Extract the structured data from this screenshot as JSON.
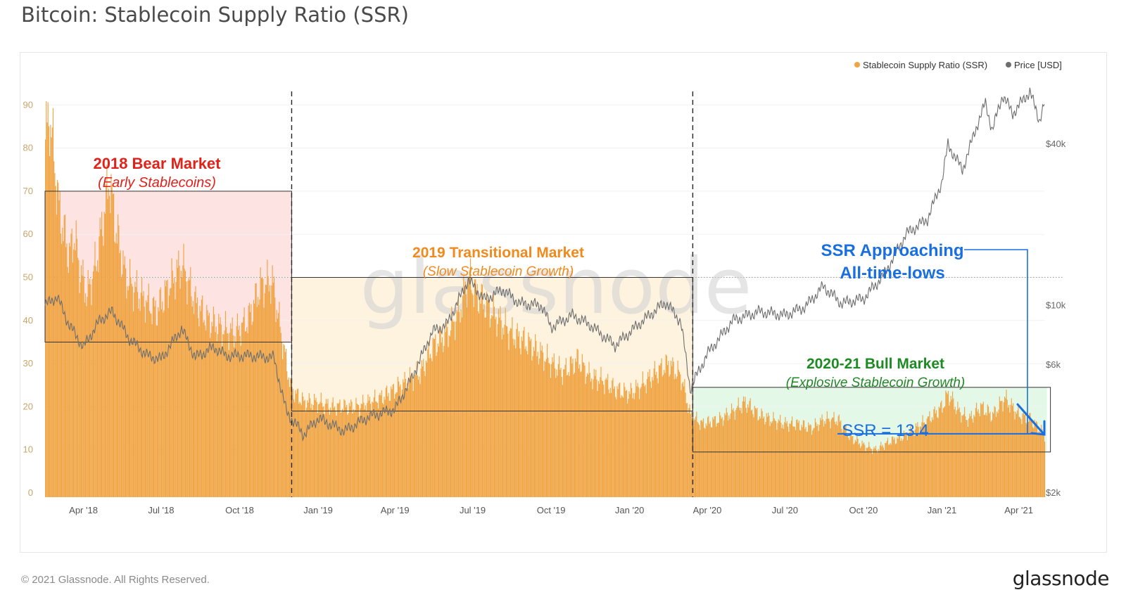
{
  "page": {
    "title": "Bitcoin: Stablecoin Supply Ratio (SSR)",
    "copyright": "© 2021 Glassnode. All Rights Reserved.",
    "logo": "glassnode",
    "watermark": "glassnode"
  },
  "colors": {
    "ssr": "#f0a443",
    "price": "#6e6e6e",
    "bear_box": "#fde3e1",
    "transition_box": "#fef3df",
    "bull_box": "#e4f8e8",
    "bear_text": "#e0231a",
    "transition_text": "#f08a1c",
    "bull_text": "#1e8a24",
    "ssr_text": "#1a6fe0"
  },
  "chart_data": {
    "type": "bar",
    "title": "Bitcoin: Stablecoin Supply Ratio (SSR)",
    "legend": [
      {
        "name": "Stablecoin Supply Ratio (SSR)",
        "color": "#f0a443"
      },
      {
        "name": "Price [USD]",
        "color": "#6e6e6e"
      }
    ],
    "legend_position": "top-right",
    "x_ticks": [
      "Apr '18",
      "Jul '18",
      "Oct '18",
      "Jan '19",
      "Apr '19",
      "Jul '19",
      "Oct '19",
      "Jan '20",
      "Apr '20",
      "Jul '20",
      "Oct '20",
      "Jan '21",
      "Apr '21"
    ],
    "x_range": [
      "2018-02-15",
      "2021-05-01"
    ],
    "y_left": {
      "ticks": [
        0,
        10,
        20,
        30,
        40,
        50,
        60,
        70,
        80,
        90
      ],
      "lim": [
        0,
        92
      ]
    },
    "y_right": {
      "ticks": [
        "$2k",
        "$6k",
        "$10k",
        "$40k"
      ],
      "scale": "log",
      "values": [
        2000,
        6000,
        10000,
        40000
      ]
    },
    "grid": true,
    "series": [
      {
        "name": "Stablecoin Supply Ratio (SSR)",
        "kind": "bar",
        "points": [
          [
            "2018-02-15",
            82
          ],
          [
            "2018-02-20",
            88
          ],
          [
            "2018-02-26",
            76
          ],
          [
            "2018-03-03",
            66
          ],
          [
            "2018-03-09",
            60
          ],
          [
            "2018-03-15",
            55
          ],
          [
            "2018-03-21",
            60
          ],
          [
            "2018-03-27",
            52
          ],
          [
            "2018-04-05",
            46
          ],
          [
            "2018-04-15",
            53
          ],
          [
            "2018-04-25",
            65
          ],
          [
            "2018-05-01",
            73
          ],
          [
            "2018-05-08",
            62
          ],
          [
            "2018-05-20",
            50
          ],
          [
            "2018-06-05",
            46
          ],
          [
            "2018-06-25",
            42
          ],
          [
            "2018-07-10",
            48
          ],
          [
            "2018-07-25",
            53
          ],
          [
            "2018-08-10",
            44
          ],
          [
            "2018-08-25",
            40
          ],
          [
            "2018-09-10",
            38
          ],
          [
            "2018-09-25",
            37
          ],
          [
            "2018-10-10",
            40
          ],
          [
            "2018-10-25",
            48
          ],
          [
            "2018-11-08",
            49
          ],
          [
            "2018-11-20",
            35
          ],
          [
            "2018-11-30",
            24
          ],
          [
            "2018-12-15",
            21
          ],
          [
            "2019-01-01",
            21
          ],
          [
            "2019-01-15",
            20
          ],
          [
            "2019-02-01",
            20
          ],
          [
            "2019-02-15",
            20
          ],
          [
            "2019-03-01",
            21
          ],
          [
            "2019-03-15",
            22
          ],
          [
            "2019-04-01",
            24
          ],
          [
            "2019-04-15",
            26
          ],
          [
            "2019-05-01",
            28
          ],
          [
            "2019-05-15",
            34
          ],
          [
            "2019-06-01",
            37
          ],
          [
            "2019-06-15",
            42
          ],
          [
            "2019-06-26",
            50
          ],
          [
            "2019-07-05",
            46
          ],
          [
            "2019-07-15",
            44
          ],
          [
            "2019-08-01",
            40
          ],
          [
            "2019-08-15",
            37
          ],
          [
            "2019-09-01",
            35
          ],
          [
            "2019-09-15",
            33
          ],
          [
            "2019-10-01",
            30
          ],
          [
            "2019-10-15",
            28
          ],
          [
            "2019-11-01",
            31
          ],
          [
            "2019-11-15",
            27
          ],
          [
            "2019-12-01",
            26
          ],
          [
            "2019-12-15",
            24
          ],
          [
            "2020-01-01",
            23
          ],
          [
            "2020-01-15",
            25
          ],
          [
            "2020-02-01",
            28
          ],
          [
            "2020-02-15",
            30
          ],
          [
            "2020-03-01",
            27
          ],
          [
            "2020-03-12",
            18
          ],
          [
            "2020-03-25",
            16
          ],
          [
            "2020-04-15",
            17
          ],
          [
            "2020-05-01",
            19
          ],
          [
            "2020-05-15",
            21
          ],
          [
            "2020-06-01",
            18
          ],
          [
            "2020-06-15",
            17
          ],
          [
            "2020-07-01",
            16
          ],
          [
            "2020-07-15",
            16
          ],
          [
            "2020-08-01",
            15
          ],
          [
            "2020-08-15",
            17
          ],
          [
            "2020-09-01",
            17
          ],
          [
            "2020-09-15",
            13
          ],
          [
            "2020-10-01",
            11
          ],
          [
            "2020-10-15",
            10
          ],
          [
            "2020-11-01",
            12
          ],
          [
            "2020-11-15",
            13
          ],
          [
            "2020-12-01",
            15
          ],
          [
            "2020-12-15",
            17
          ],
          [
            "2021-01-01",
            20
          ],
          [
            "2021-01-08",
            23
          ],
          [
            "2021-01-20",
            19
          ],
          [
            "2021-02-01",
            17
          ],
          [
            "2021-02-15",
            20
          ],
          [
            "2021-03-01",
            18
          ],
          [
            "2021-03-15",
            22
          ],
          [
            "2021-04-01",
            18
          ],
          [
            "2021-04-15",
            17
          ],
          [
            "2021-05-01",
            13.4
          ]
        ]
      },
      {
        "name": "Price [USD]",
        "kind": "line",
        "points": [
          [
            "2018-02-15",
            10000
          ],
          [
            "2018-03-01",
            10800
          ],
          [
            "2018-03-15",
            8500
          ],
          [
            "2018-04-01",
            7000
          ],
          [
            "2018-04-20",
            8800
          ],
          [
            "2018-05-05",
            9500
          ],
          [
            "2018-05-25",
            7500
          ],
          [
            "2018-06-15",
            6500
          ],
          [
            "2018-07-01",
            6300
          ],
          [
            "2018-07-25",
            8200
          ],
          [
            "2018-08-10",
            6400
          ],
          [
            "2018-09-01",
            7000
          ],
          [
            "2018-09-15",
            6500
          ],
          [
            "2018-10-10",
            6500
          ],
          [
            "2018-11-10",
            6400
          ],
          [
            "2018-11-25",
            4000
          ],
          [
            "2018-12-15",
            3300
          ],
          [
            "2019-01-01",
            3800
          ],
          [
            "2019-02-01",
            3400
          ],
          [
            "2019-03-01",
            3850
          ],
          [
            "2019-04-01",
            4100
          ],
          [
            "2019-04-20",
            5300
          ],
          [
            "2019-05-15",
            8000
          ],
          [
            "2019-06-01",
            8500
          ],
          [
            "2019-06-26",
            12500
          ],
          [
            "2019-07-15",
            10500
          ],
          [
            "2019-08-05",
            11500
          ],
          [
            "2019-08-25",
            10200
          ],
          [
            "2019-09-20",
            10000
          ],
          [
            "2019-10-01",
            8300
          ],
          [
            "2019-10-26",
            9200
          ],
          [
            "2019-11-15",
            8500
          ],
          [
            "2019-12-15",
            7100
          ],
          [
            "2020-01-15",
            8700
          ],
          [
            "2020-02-12",
            10300
          ],
          [
            "2020-03-01",
            8700
          ],
          [
            "2020-03-12",
            4900
          ],
          [
            "2020-04-01",
            6600
          ],
          [
            "2020-05-01",
            8800
          ],
          [
            "2020-06-01",
            9500
          ],
          [
            "2020-07-01",
            9200
          ],
          [
            "2020-07-25",
            9900
          ],
          [
            "2020-08-15",
            11800
          ],
          [
            "2020-09-05",
            10200
          ],
          [
            "2020-10-01",
            10600
          ],
          [
            "2020-10-25",
            13000
          ],
          [
            "2020-11-20",
            18500
          ],
          [
            "2020-12-15",
            21000
          ],
          [
            "2021-01-01",
            29000
          ],
          [
            "2021-01-08",
            40000
          ],
          [
            "2021-01-25",
            32000
          ],
          [
            "2021-02-10",
            46000
          ],
          [
            "2021-02-21",
            57000
          ],
          [
            "2021-03-01",
            45000
          ],
          [
            "2021-03-13",
            61000
          ],
          [
            "2021-03-25",
            52000
          ],
          [
            "2021-04-14",
            63000
          ],
          [
            "2021-04-25",
            49000
          ],
          [
            "2021-05-01",
            57000
          ]
        ]
      }
    ],
    "annotations": [
      {
        "id": "bear",
        "title": "2018 Bear Market",
        "subtitle": "(Early Stablecoins)",
        "range": [
          "2018-02-15",
          "2018-12-01"
        ],
        "y": [
          35,
          70
        ]
      },
      {
        "id": "transition",
        "title": "2019 Transitional Market",
        "subtitle": "(Slow Stablecoin Growth)",
        "range": [
          "2018-12-01",
          "2020-03-15"
        ],
        "y": [
          19,
          50
        ]
      },
      {
        "id": "bull",
        "title": "2020-21 Bull Market",
        "subtitle": "(Explosive Stablecoin Growth)",
        "range": [
          "2020-03-15",
          "2021-05-04"
        ],
        "y": [
          9.5,
          24.5
        ]
      },
      {
        "id": "ssr_value",
        "text": "SSR = 13.4",
        "value": 13.4
      },
      {
        "id": "ssr_callout",
        "text_line1": "SSR Approaching",
        "text_line2": "All-time-lows"
      }
    ],
    "reference_lines": {
      "dashed_vertical_dates": [
        "2018-12-01",
        "2020-03-15"
      ],
      "dotted_horizontal_value": 50
    }
  }
}
